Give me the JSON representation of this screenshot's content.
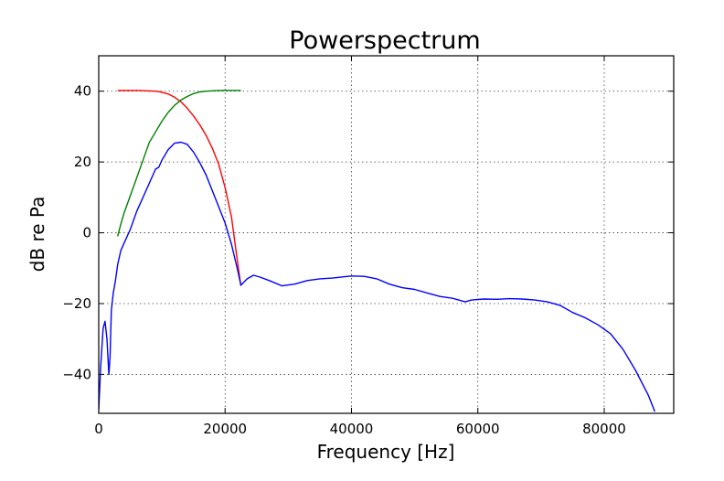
{
  "chart_data": {
    "type": "line",
    "title": "Powerspectrum",
    "xlabel": "Frequency [Hz]",
    "ylabel": "dB re Pa",
    "xlim": [
      0,
      91000
    ],
    "ylim": [
      -51,
      50
    ],
    "xticks": [
      0,
      20000,
      40000,
      60000,
      80000
    ],
    "xtick_labels": [
      "0",
      "20000",
      "40000",
      "60000",
      "80000"
    ],
    "yticks": [
      -40,
      -20,
      0,
      20,
      40
    ],
    "ytick_labels": [
      "−40",
      "−20",
      "0",
      "20",
      "40"
    ],
    "grid": true,
    "legend": "none",
    "series": [
      {
        "color": "#ff0000",
        "x": [
          3000,
          6000,
          9000,
          10000,
          11000,
          12000,
          13000,
          14000,
          15000,
          16000,
          17000,
          18000,
          19000,
          20000,
          21000,
          22000,
          22500
        ],
        "y": [
          40.2,
          40.2,
          40.0,
          39.7,
          39.2,
          38.3,
          37.0,
          35.2,
          33.0,
          30.5,
          27.5,
          23.8,
          19.3,
          12.8,
          4.5,
          -8.8,
          -15.0
        ]
      },
      {
        "color": "#008000",
        "x": [
          3000,
          3500,
          4000,
          5000,
          6000,
          7000,
          8000,
          9000,
          10000,
          11000,
          12000,
          13000,
          14000,
          15000,
          16000,
          17000,
          18000,
          19000,
          20000,
          21000,
          22000,
          22500
        ],
        "y": [
          -1.0,
          2.5,
          5.5,
          10.5,
          15.5,
          20.5,
          25.5,
          28.5,
          31.5,
          34.0,
          36.0,
          37.5,
          38.5,
          39.3,
          39.8,
          40.0,
          40.1,
          40.2,
          40.2,
          40.2,
          40.2,
          40.2
        ]
      },
      {
        "color": "#0000ff",
        "x": [
          0,
          300,
          700,
          1000,
          1300,
          1600,
          1800,
          2000,
          2300,
          2600,
          3000,
          3500,
          4000,
          5000,
          6000,
          7000,
          8000,
          9000,
          9500,
          10000,
          11000,
          12000,
          13000,
          14000,
          15000,
          16000,
          17000,
          18000,
          19000,
          20000,
          21000,
          22000,
          22500,
          23500,
          24500,
          25500,
          27000,
          29000,
          31000,
          33000,
          35000,
          37000,
          40000,
          42000,
          44000,
          46000,
          48000,
          50000,
          52000,
          54000,
          56000,
          58000,
          59000,
          61000,
          63000,
          65000,
          67000,
          69000,
          71000,
          73000,
          75000,
          77000,
          79000,
          81000,
          83000,
          85000,
          87000,
          88000
        ],
        "y": [
          -50.0,
          -38.0,
          -27.0,
          -25.0,
          -30.0,
          -40.0,
          -35.0,
          -22.0,
          -17.0,
          -14.0,
          -9.0,
          -5.0,
          -3.0,
          1.0,
          6.0,
          10.0,
          14.0,
          18.0,
          18.5,
          20.5,
          23.5,
          25.3,
          25.6,
          25.0,
          22.8,
          19.8,
          16.3,
          11.8,
          7.3,
          2.8,
          -3.2,
          -10.7,
          -14.8,
          -13.0,
          -12.0,
          -12.5,
          -13.5,
          -15.0,
          -14.5,
          -13.5,
          -13.0,
          -12.8,
          -12.2,
          -12.3,
          -13.0,
          -14.5,
          -15.5,
          -16.0,
          -17.0,
          -18.0,
          -18.5,
          -19.5,
          -19.0,
          -18.7,
          -18.8,
          -18.6,
          -18.7,
          -19.0,
          -19.5,
          -20.5,
          -22.5,
          -24.0,
          -26.0,
          -28.5,
          -33.0,
          -39.0,
          -46.0,
          -50.5
        ]
      }
    ]
  }
}
